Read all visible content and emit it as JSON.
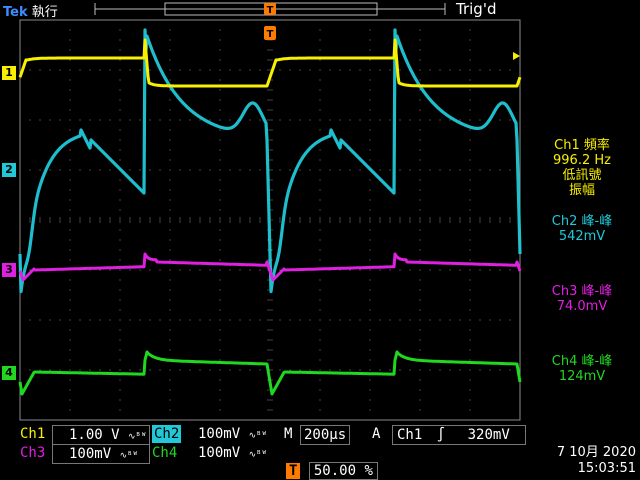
{
  "header": {
    "brand": "Tek",
    "run_state": "執行",
    "trigger_state": "Trig'd"
  },
  "colors": {
    "ch1": "#f8f000",
    "ch2": "#20c8d8",
    "ch3": "#e020e0",
    "ch4": "#20d820",
    "trigger_marker": "#ff7a00",
    "grid": "#8a8a8a"
  },
  "channel_markers": [
    "1",
    "2",
    "3",
    "4"
  ],
  "measurements": [
    {
      "lines": [
        "Ch1 頻率",
        "996.2 Hz",
        "低訊號",
        "振幅"
      ],
      "color": "#f8f000"
    },
    {
      "lines": [
        "Ch2 峰-峰",
        "542mV"
      ],
      "color": "#20c8d8"
    },
    {
      "lines": [
        "Ch3 峰-峰",
        "74.0mV"
      ],
      "color": "#e020e0"
    },
    {
      "lines": [
        "Ch4 峰-峰",
        "124mV"
      ],
      "color": "#20d820"
    }
  ],
  "bottom": {
    "ch1_label": "Ch1",
    "ch1_scale": "1.00 V",
    "ch2_label": "Ch2",
    "ch2_scale": "100mV",
    "ch3_label": "Ch3",
    "ch3_scale": "100mV",
    "ch4_label": "Ch4",
    "ch4_scale": "100mV",
    "bw_icon": "∿ᴮᵂ",
    "timebase_label": "M",
    "timebase": "200μs",
    "trigger_mode": "A",
    "trigger_source": "Ch1",
    "trigger_slope": "∫",
    "trigger_level": "320mV",
    "trigger_pos_icon": "T",
    "trigger_position": "50.00 %"
  },
  "datetime": {
    "date": "7 10月 2020",
    "time": "15:03:51"
  }
}
